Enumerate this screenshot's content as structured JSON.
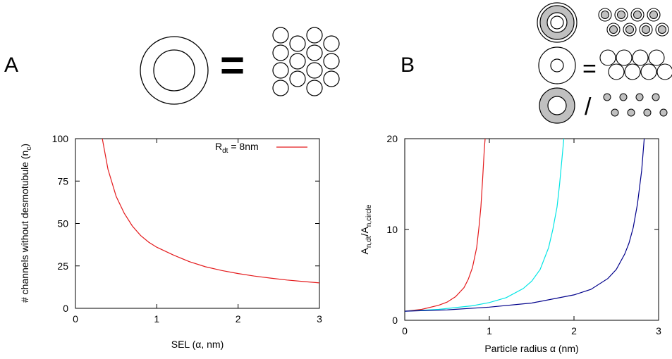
{
  "figure": {
    "panel_a_label": "A",
    "panel_b_label": "B",
    "equals_symbol": "=",
    "divide_symbol": "/"
  },
  "colors": {
    "red": "#e41a1c",
    "cyan": "#00e5e5",
    "blue": "#00008b",
    "gray_fill": "#c0c0c0"
  },
  "chart_data": [
    {
      "type": "line",
      "panel": "A",
      "title": "",
      "xlabel": "SEL (α, nm)",
      "ylabel": "# channels without desmotubule (n",
      "ylabel_sub": "c",
      "ylabel_close": ")",
      "xlim": [
        0,
        3
      ],
      "ylim": [
        0,
        100
      ],
      "xticks": [
        "0",
        "1",
        "2",
        "3"
      ],
      "yticks": [
        "0",
        "25",
        "50",
        "75",
        "100"
      ],
      "legend_position": "top-right",
      "series": [
        {
          "name": "R",
          "name_sub": "dt",
          "name_rest": " = 8nm",
          "color": "#e41a1c",
          "x": [
            0.33,
            0.4,
            0.5,
            0.6,
            0.7,
            0.8,
            0.9,
            1.0,
            1.2,
            1.4,
            1.6,
            1.8,
            2.0,
            2.2,
            2.4,
            2.6,
            2.8,
            3.0
          ],
          "y": [
            100,
            82,
            66,
            56,
            48.5,
            43,
            39,
            36,
            31.5,
            27.5,
            24.5,
            22.3,
            20.5,
            19.0,
            17.8,
            16.7,
            15.8,
            15
          ]
        }
      ]
    },
    {
      "type": "line",
      "panel": "B",
      "title": "",
      "xlabel": "Particle radius α (nm)",
      "ylabel": "A",
      "ylabel_sub1": "n,dt",
      "ylabel_mid": "/A",
      "ylabel_sub2": "n,circle",
      "xlim": [
        0,
        3
      ],
      "ylim": [
        0,
        20
      ],
      "xticks": [
        "0",
        "1",
        "2",
        "3"
      ],
      "yticks": [
        "0",
        "10",
        "20"
      ],
      "series": [
        {
          "color": "#e41a1c",
          "x": [
            0.0,
            0.2,
            0.4,
            0.5,
            0.6,
            0.7,
            0.75,
            0.8,
            0.85,
            0.88,
            0.9,
            0.92,
            0.94,
            0.95
          ],
          "y": [
            1.0,
            1.2,
            1.65,
            2.0,
            2.6,
            3.6,
            4.5,
            5.8,
            8.0,
            10.5,
            12.5,
            15.5,
            18.8,
            20
          ]
        },
        {
          "color": "#00e5e5",
          "x": [
            0.0,
            0.4,
            0.8,
            1.0,
            1.2,
            1.4,
            1.5,
            1.6,
            1.7,
            1.75,
            1.8,
            1.83,
            1.86,
            1.88
          ],
          "y": [
            1.0,
            1.2,
            1.6,
            1.95,
            2.5,
            3.5,
            4.3,
            5.6,
            8.0,
            10.0,
            12.5,
            15.0,
            18.0,
            20
          ]
        },
        {
          "color": "#00008b",
          "x": [
            0.0,
            0.5,
            1.0,
            1.5,
            2.0,
            2.2,
            2.4,
            2.5,
            2.6,
            2.65,
            2.7,
            2.75,
            2.8,
            2.83
          ],
          "y": [
            1.0,
            1.15,
            1.45,
            1.9,
            2.8,
            3.4,
            4.6,
            5.6,
            7.3,
            8.5,
            10.2,
            12.8,
            16.5,
            20
          ]
        }
      ]
    }
  ]
}
